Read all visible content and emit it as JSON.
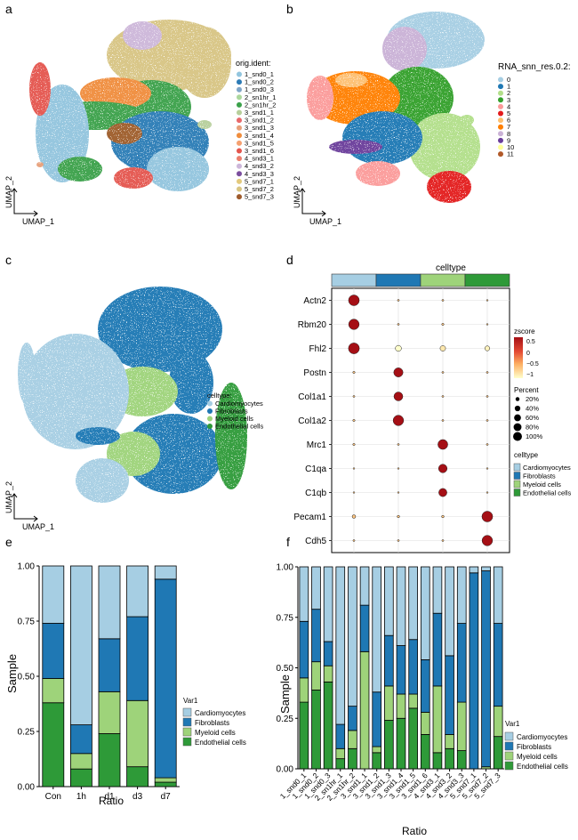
{
  "panel_labels": [
    "a",
    "b",
    "c",
    "d",
    "e",
    "f"
  ],
  "colors": {
    "cardio": "#a6cee3",
    "fibro": "#1f78b4",
    "myeloid": "#9ed37a",
    "endo": "#2e9a38",
    "orig": [
      "#92c5de",
      "#2c7bb6",
      "#80a6c8",
      "#abd79c",
      "#3aa14a",
      "#b7cf9b",
      "#e8686a",
      "#e7a07a",
      "#f08d3c",
      "#f5a070",
      "#e4554d",
      "#eb7f6e",
      "#cdb7da",
      "#7b4e9e",
      "#e3c97c",
      "#d8c583",
      "#9e5b2c"
    ],
    "res": [
      "#a6cee3",
      "#1f78b4",
      "#b2df8a",
      "#33a02c",
      "#fb9a99",
      "#e31a1c",
      "#fdbf6f",
      "#ff7f00",
      "#cab2d6",
      "#6a3d9a",
      "#ffff99",
      "#b15928"
    ]
  },
  "panel_a": {
    "legend_title": "orig.ident:",
    "items": [
      "1_snd0_1",
      "1_snd0_2",
      "1_snd0_3",
      "2_sn1hr_1",
      "2_sn1hr_2",
      "3_snd1_1",
      "3_snd1_2",
      "3_snd1_3",
      "3_snd1_4",
      "3_snd1_5",
      "3_snd1_6",
      "4_snd3_1",
      "4_snd3_2",
      "4_snd3_3",
      "5_snd7_1",
      "5_snd7_2",
      "5_snd7_3"
    ],
    "xlabel": "UMAP_1",
    "ylabel": "UMAP_2"
  },
  "panel_b": {
    "legend_title": "RNA_snn_res.0.2:",
    "items": [
      "0",
      "1",
      "2",
      "3",
      "4",
      "5",
      "6",
      "7",
      "8",
      "9",
      "10",
      "11"
    ],
    "xlabel": "UMAP_1",
    "ylabel": "UMAP_2"
  },
  "panel_c": {
    "legend_title": "celltype:",
    "items": [
      "Cardiomyocytes",
      "Fibroblasts",
      "Myeloid cells",
      "Endothelial cells"
    ],
    "xlabel": "UMAP_1",
    "ylabel": "UMAP_2"
  },
  "panel_d": {
    "top_label": "celltype",
    "genes": [
      "Actn2",
      "Rbm20",
      "Fhl2",
      "Postn",
      "Col1a1",
      "Col1a2",
      "Mrc1",
      "C1qa",
      "C1qb",
      "Pecam1",
      "Cdh5"
    ],
    "zscore_title": "zscore",
    "zscore_ticks": [
      "0.5",
      "0",
      "−0.5",
      "−1"
    ],
    "percent_title": "Percent",
    "percent_ticks": [
      "20%",
      "40%",
      "60%",
      "80%",
      "100%"
    ],
    "celltype_title": "celltype",
    "celltypes": [
      "Cardiomyocytes",
      "Fibroblasts",
      "Myeloid cells",
      "Endothelial cells"
    ]
  },
  "panel_e": {
    "ylabel": "Sample",
    "xlabel": "Ratio",
    "yticks": [
      "0.00",
      "0.25",
      "0.50",
      "0.75",
      "1.00"
    ],
    "legend_title": "Var1",
    "legend_items": [
      "Cardiomyocytes",
      "Fibroblasts",
      "Myeloid cells",
      "Endothelial cells"
    ]
  },
  "panel_f": {
    "ylabel": "Sample",
    "xlabel": "Ratio",
    "yticks": [
      "0.00",
      "0.25",
      "0.50",
      "0.75",
      "1.00"
    ],
    "legend_title": "Var1",
    "legend_items": [
      "Cardiomyocytes",
      "Fibroblasts",
      "Myeloid cells",
      "Endothelial cells"
    ]
  },
  "chart_data": [
    {
      "type": "dot",
      "title": "celltype",
      "genes": [
        "Actn2",
        "Rbm20",
        "Fhl2",
        "Postn",
        "Col1a1",
        "Col1a2",
        "Mrc1",
        "C1qa",
        "C1qb",
        "Pecam1",
        "Cdh5"
      ],
      "groups": [
        "Cardiomyocytes",
        "Fibroblasts",
        "Myeloid cells",
        "Endothelial cells"
      ],
      "percent": [
        [
          95,
          3,
          3,
          2
        ],
        [
          90,
          3,
          4,
          2
        ],
        [
          98,
          30,
          25,
          20
        ],
        [
          4,
          70,
          3,
          3
        ],
        [
          3,
          65,
          3,
          3
        ],
        [
          4,
          90,
          3,
          3
        ],
        [
          4,
          3,
          80,
          3
        ],
        [
          2,
          2,
          60,
          2
        ],
        [
          2,
          2,
          55,
          2
        ],
        [
          10,
          5,
          5,
          95
        ],
        [
          3,
          3,
          3,
          90
        ]
      ],
      "zscore": [
        [
          1,
          -0.5,
          -0.5,
          -0.5
        ],
        [
          1,
          -0.5,
          -0.5,
          -0.5
        ],
        [
          1,
          -1,
          -0.8,
          -0.9
        ],
        [
          -0.5,
          1,
          -0.5,
          -0.5
        ],
        [
          -0.5,
          1,
          -0.5,
          -0.5
        ],
        [
          -0.5,
          1,
          -0.5,
          -0.5
        ],
        [
          -0.5,
          -0.5,
          1,
          -0.5
        ],
        [
          -0.5,
          -0.5,
          1,
          -0.5
        ],
        [
          -0.5,
          -0.5,
          1,
          -0.5
        ],
        [
          -0.5,
          -0.5,
          -0.5,
          1
        ],
        [
          -0.5,
          -0.5,
          -0.5,
          1
        ]
      ],
      "zlim": [
        -1,
        1
      ]
    },
    {
      "type": "bar",
      "stacked": true,
      "categories": [
        "Con",
        "1h",
        "d1",
        "d3",
        "d7"
      ],
      "series": [
        {
          "name": "Endothelial cells",
          "values": [
            0.38,
            0.08,
            0.24,
            0.09,
            0.02
          ]
        },
        {
          "name": "Myeloid cells",
          "values": [
            0.11,
            0.07,
            0.19,
            0.3,
            0.02
          ]
        },
        {
          "name": "Fibroblasts",
          "values": [
            0.25,
            0.13,
            0.24,
            0.38,
            0.9
          ]
        },
        {
          "name": "Cardiomyocytes",
          "values": [
            0.26,
            0.72,
            0.33,
            0.23,
            0.06
          ]
        }
      ],
      "xlabel": "Ratio",
      "ylabel": "Sample",
      "ylim": [
        0,
        1
      ],
      "legend_title": "Var1"
    },
    {
      "type": "bar",
      "stacked": true,
      "categories": [
        "1_snd0_1",
        "1_snd0_2",
        "1_snd0_3",
        "2_sn1hr_1",
        "2_sn1hr_2",
        "3_snd1_1",
        "3_snd1_2",
        "3_snd1_3",
        "3_snd1_4",
        "3_snd1_5",
        "3_snd1_6",
        "4_snd3_1",
        "4_snd3_2",
        "4_snd3_3",
        "5_snd7_1",
        "5_snd7_2",
        "5_snd7_3"
      ],
      "series": [
        {
          "name": "Endothelial cells",
          "values": [
            0.33,
            0.39,
            0.43,
            0.05,
            0.1,
            0.0,
            0.08,
            0.24,
            0.25,
            0.3,
            0.17,
            0.08,
            0.1,
            0.09,
            0.0,
            0.0,
            0.16
          ]
        },
        {
          "name": "Myeloid cells",
          "values": [
            0.12,
            0.14,
            0.08,
            0.05,
            0.09,
            0.58,
            0.03,
            0.17,
            0.12,
            0.07,
            0.11,
            0.33,
            0.07,
            0.24,
            0.0,
            0.01,
            0.15
          ]
        },
        {
          "name": "Fibroblasts",
          "values": [
            0.28,
            0.26,
            0.12,
            0.12,
            0.12,
            0.23,
            0.27,
            0.25,
            0.24,
            0.27,
            0.26,
            0.36,
            0.39,
            0.39,
            0.97,
            0.97,
            0.41
          ]
        },
        {
          "name": "Cardiomyocytes",
          "values": [
            0.27,
            0.21,
            0.37,
            0.78,
            0.69,
            0.19,
            0.62,
            0.34,
            0.39,
            0.36,
            0.46,
            0.23,
            0.44,
            0.28,
            0.03,
            0.02,
            0.28
          ]
        }
      ],
      "xlabel": "Ratio",
      "ylabel": "Sample",
      "ylim": [
        0,
        1
      ],
      "legend_title": "Var1"
    }
  ]
}
